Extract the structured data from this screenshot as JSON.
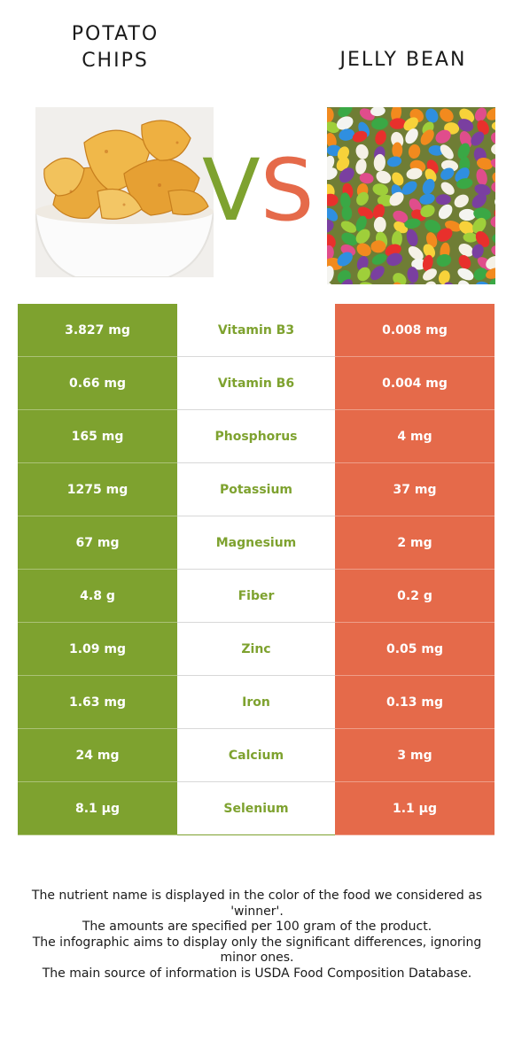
{
  "left_food": {
    "name": "POTATO CHIPS",
    "color": "#7ea22f"
  },
  "right_food": {
    "name": "JELLY BEAN",
    "color": "#e56a4a"
  },
  "vs": {
    "v": "V",
    "s": "S"
  },
  "rows": [
    {
      "left": "3.827 mg",
      "nutrient": "Vitamin B3",
      "right": "0.008 mg"
    },
    {
      "left": "0.66 mg",
      "nutrient": "Vitamin B6",
      "right": "0.004 mg"
    },
    {
      "left": "165 mg",
      "nutrient": "Phosphorus",
      "right": "4 mg"
    },
    {
      "left": "1275 mg",
      "nutrient": "Potassium",
      "right": "37 mg"
    },
    {
      "left": "67 mg",
      "nutrient": "Magnesium",
      "right": "2 mg"
    },
    {
      "left": "4.8 g",
      "nutrient": "Fiber",
      "right": "0.2 g"
    },
    {
      "left": "1.09 mg",
      "nutrient": "Zinc",
      "right": "0.05 mg"
    },
    {
      "left": "1.63 mg",
      "nutrient": "Iron",
      "right": "0.13 mg"
    },
    {
      "left": "24 mg",
      "nutrient": "Calcium",
      "right": "3 mg"
    },
    {
      "left": "8.1 µg",
      "nutrient": "Selenium",
      "right": "1.1 µg"
    }
  ],
  "footnote": {
    "line1": "The nutrient name is displayed in the color of the food we considered as 'winner'.",
    "line2": "The amounts are specified per 100 gram of the product.",
    "line3": "The infographic aims to display only the significant differences, ignoring minor ones.",
    "line4": "The main source of information is USDA Food Composition Database."
  }
}
